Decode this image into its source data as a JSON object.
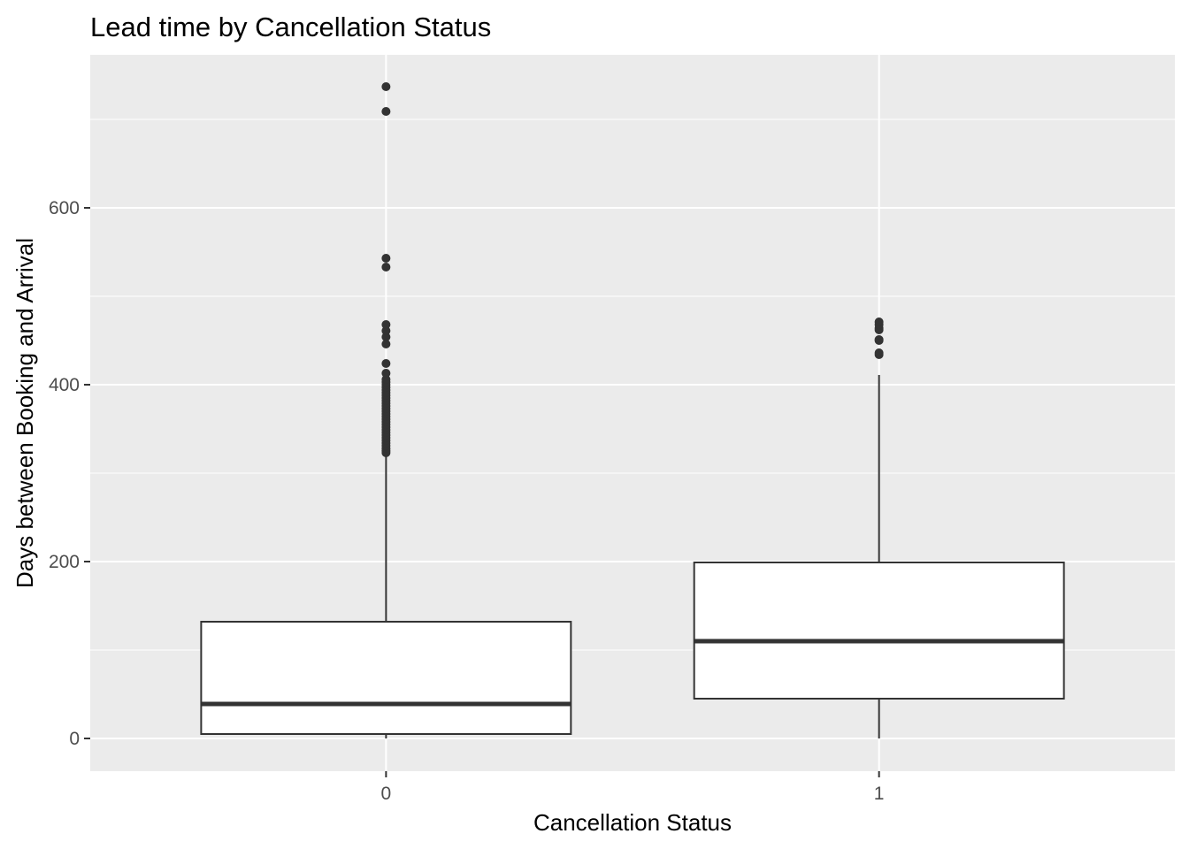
{
  "chart_data": {
    "type": "boxplot",
    "title": "Lead time by Cancellation Status",
    "xlabel": "Cancellation Status",
    "ylabel": "Days between Booking and Arrival",
    "categories": [
      "0",
      "1"
    ],
    "y_ticks": [
      0,
      200,
      400,
      600
    ],
    "y_ticks_minor": [
      100,
      300,
      500,
      700
    ],
    "ylim": [
      -37,
      773
    ],
    "grid": true,
    "panel_background": "#ebebeb",
    "box_fill": "#ffffff",
    "line_color": "#333333",
    "boxes": [
      {
        "category": "0",
        "whisker_low": 0,
        "q1": 5,
        "median": 39,
        "q3": 132,
        "whisker_high": 322,
        "outliers": [
          323,
          325,
          328,
          331,
          334,
          337,
          340,
          343,
          346,
          349,
          352,
          355,
          358,
          361,
          364,
          367,
          370,
          373,
          376,
          379,
          382,
          385,
          388,
          391,
          394,
          397,
          400,
          403,
          406,
          413,
          424,
          446,
          454,
          461,
          468,
          533,
          543,
          709,
          737
        ]
      },
      {
        "category": "1",
        "whisker_low": 0,
        "q1": 45,
        "median": 110,
        "q3": 199,
        "whisker_high": 411,
        "outliers": [
          434,
          436,
          450,
          451,
          462,
          464,
          468,
          471
        ]
      }
    ]
  }
}
